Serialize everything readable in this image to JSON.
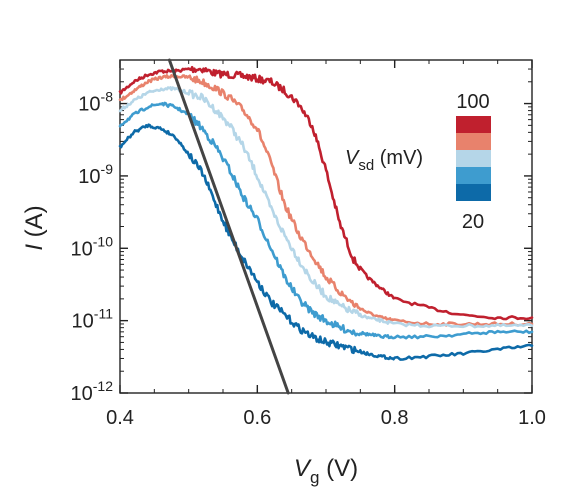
{
  "chart_data": {
    "type": "line",
    "xlabel": "V_g (V)",
    "ylabel": "I (A)",
    "xlim": [
      0.4,
      1.0
    ],
    "ylim": [
      1e-12,
      4e-08
    ],
    "yscale": "log",
    "grid": false,
    "x_ticks": [
      0.4,
      0.6,
      0.8,
      1.0
    ],
    "x_tick_labels": [
      "0.4",
      "0.6",
      "0.8",
      "1.0"
    ],
    "y_ticks": [
      1e-12,
      1e-11,
      1e-10,
      1e-09,
      1e-08
    ],
    "y_tick_labels": [
      {
        "base": "10",
        "exp": "-12"
      },
      {
        "base": "10",
        "exp": "-11"
      },
      {
        "base": "10",
        "exp": "-10"
      },
      {
        "base": "10",
        "exp": "-9"
      },
      {
        "base": "10",
        "exp": "-8"
      }
    ],
    "legend": {
      "title": "V_sd (mV)",
      "top_label": "100",
      "bottom_label": "20",
      "placement": "top-right",
      "colors": [
        "#c0202e",
        "#e8826c",
        "#b5d6e8",
        "#3e9ccf",
        "#0d6aa8"
      ]
    },
    "series": [
      {
        "color": "#c0202e",
        "x": [
          0.4,
          0.42,
          0.44,
          0.46,
          0.48,
          0.5,
          0.52,
          0.54,
          0.56,
          0.58,
          0.6,
          0.62,
          0.64,
          0.66,
          0.68,
          0.7,
          0.72,
          0.74,
          0.76,
          0.78,
          0.8,
          0.85,
          0.9,
          0.95,
          1.0
        ],
        "y": [
          1.4e-08,
          2e-08,
          2.5e-08,
          2.8e-08,
          2.8e-08,
          3e-08,
          3e-08,
          2.6e-08,
          2.5e-08,
          2.4e-08,
          2.2e-08,
          2e-08,
          1.5e-08,
          1e-08,
          5e-09,
          1.2e-09,
          2.2e-10,
          7e-11,
          4e-11,
          2.8e-11,
          2e-11,
          1.5e-11,
          1.2e-11,
          1.1e-11,
          1.1e-11
        ]
      },
      {
        "color": "#e8826c",
        "x": [
          0.4,
          0.42,
          0.44,
          0.46,
          0.48,
          0.5,
          0.52,
          0.54,
          0.56,
          0.58,
          0.6,
          0.62,
          0.64,
          0.66,
          0.68,
          0.7,
          0.72,
          0.74,
          0.76,
          0.78,
          0.8,
          0.85,
          0.9,
          0.95,
          1.0
        ],
        "y": [
          1.1e-08,
          1.5e-08,
          2e-08,
          2.3e-08,
          2.4e-08,
          2.3e-08,
          2e-08,
          1.6e-08,
          1.2e-08,
          8e-09,
          4.5e-09,
          1.5e-09,
          4e-10,
          1.6e-10,
          8e-11,
          4e-11,
          2.5e-11,
          1.7e-11,
          1.3e-11,
          1.1e-11,
          1e-11,
          9e-12,
          9e-12,
          9e-12,
          9e-12
        ]
      },
      {
        "color": "#b5d6e8",
        "x": [
          0.4,
          0.42,
          0.44,
          0.46,
          0.48,
          0.5,
          0.52,
          0.54,
          0.56,
          0.58,
          0.6,
          0.62,
          0.64,
          0.66,
          0.68,
          0.7,
          0.72,
          0.74,
          0.76,
          0.78,
          0.8,
          0.85,
          0.9,
          0.95,
          1.0
        ],
        "y": [
          8e-09,
          1.1e-08,
          1.4e-08,
          1.6e-08,
          1.6e-08,
          1.4e-08,
          1.2e-08,
          8e-09,
          5e-09,
          2.5e-09,
          1e-09,
          3.5e-10,
          1.5e-10,
          7e-11,
          3.5e-11,
          2.2e-11,
          1.6e-11,
          1.3e-11,
          1.1e-11,
          1e-11,
          9e-12,
          8.5e-12,
          8.5e-12,
          8.5e-12,
          8.5e-12
        ]
      },
      {
        "color": "#3e9ccf",
        "x": [
          0.4,
          0.42,
          0.44,
          0.46,
          0.48,
          0.5,
          0.52,
          0.54,
          0.56,
          0.58,
          0.6,
          0.62,
          0.64,
          0.66,
          0.68,
          0.7,
          0.72,
          0.74,
          0.76,
          0.78,
          0.8,
          0.85,
          0.9,
          0.95,
          1.0
        ],
        "y": [
          5e-09,
          7e-09,
          9e-09,
          1e-08,
          9e-09,
          7e-09,
          4.5e-09,
          2.5e-09,
          1.2e-09,
          5e-10,
          2.5e-10,
          1e-10,
          4e-11,
          2e-11,
          1.3e-11,
          1e-11,
          8e-12,
          7e-12,
          6.5e-12,
          6e-12,
          6e-12,
          6e-12,
          6.5e-12,
          7e-12,
          7e-12
        ]
      },
      {
        "color": "#0d6aa8",
        "x": [
          0.4,
          0.42,
          0.44,
          0.46,
          0.48,
          0.5,
          0.52,
          0.54,
          0.56,
          0.58,
          0.6,
          0.62,
          0.64,
          0.66,
          0.68,
          0.7,
          0.72,
          0.74,
          0.76,
          0.78,
          0.8,
          0.85,
          0.9,
          0.95,
          1.0
        ],
        "y": [
          2.5e-09,
          4e-09,
          5e-09,
          4.5e-09,
          3.5e-09,
          2e-09,
          1.1e-09,
          4e-10,
          1.5e-10,
          7e-11,
          3.5e-11,
          1.8e-11,
          1.2e-11,
          8e-12,
          6e-12,
          5e-12,
          4.5e-12,
          4e-12,
          3.5e-12,
          3.2e-12,
          3e-12,
          3.2e-12,
          3.5e-12,
          4e-12,
          4.5e-12
        ]
      },
      {
        "color": "#444444",
        "x": [
          0.472,
          0.645
        ],
        "y": [
          4e-08,
          1e-12
        ]
      }
    ]
  }
}
